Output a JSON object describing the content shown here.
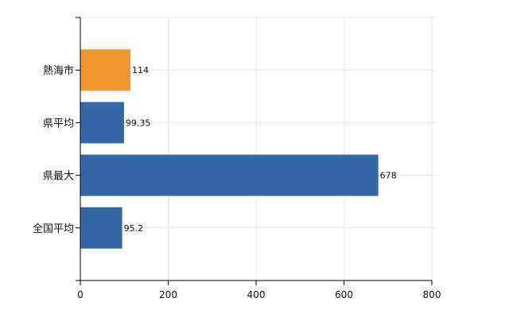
{
  "chart_data": {
    "type": "bar",
    "orientation": "horizontal",
    "categories": [
      "熱海市",
      "県平均",
      "県最大",
      "全国平均"
    ],
    "values": [
      114,
      99.35,
      678,
      95.2
    ],
    "value_labels": [
      "114",
      "99.35",
      "678",
      "95.2"
    ],
    "bar_colors": [
      "#f0962e",
      "#3567a5",
      "#3567a5",
      "#3567a5"
    ],
    "xlim": [
      0,
      800
    ],
    "x_ticks": [
      0,
      200,
      400,
      600,
      800
    ],
    "x_tick_labels": [
      "0",
      "200",
      "400",
      "600",
      "800"
    ],
    "grid": true,
    "legend": "none"
  }
}
